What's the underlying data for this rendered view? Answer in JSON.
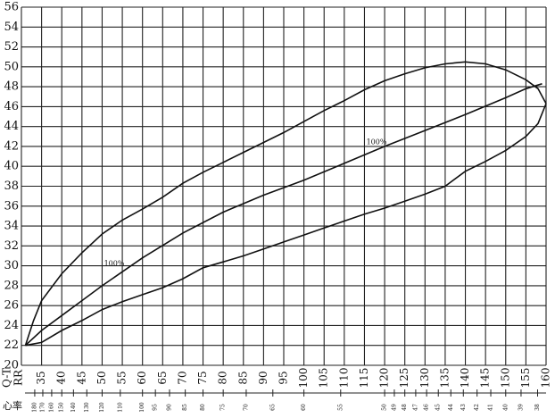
{
  "chart_data": {
    "type": "line",
    "x_label": "RR",
    "y_label": "Q-T",
    "hr_label": "心率",
    "xlim": [
      30,
      160
    ],
    "ylim": [
      20,
      56
    ],
    "xticks": [
      30,
      35,
      40,
      45,
      50,
      55,
      60,
      65,
      70,
      75,
      80,
      85,
      90,
      95,
      100,
      105,
      110,
      115,
      120,
      125,
      130,
      135,
      140,
      145,
      150,
      155,
      160
    ],
    "yticks": [
      20,
      22,
      24,
      26,
      28,
      30,
      32,
      34,
      36,
      38,
      40,
      42,
      44,
      46,
      48,
      50,
      52,
      54,
      56
    ],
    "hr_ticks": [
      {
        "value": 33.3,
        "label": "180"
      },
      {
        "value": 35.3,
        "label": "170"
      },
      {
        "value": 37.5,
        "label": "160"
      },
      {
        "value": 40,
        "label": "150"
      },
      {
        "value": 42.9,
        "label": "140"
      },
      {
        "value": 46.2,
        "label": "130"
      },
      {
        "value": 50,
        "label": "120"
      },
      {
        "value": 54.5,
        "label": "110"
      },
      {
        "value": 60,
        "label": "100"
      },
      {
        "value": 63.2,
        "label": "95"
      },
      {
        "value": 66.7,
        "label": "90"
      },
      {
        "value": 70.6,
        "label": "85"
      },
      {
        "value": 75,
        "label": "80"
      },
      {
        "value": 80,
        "label": "75"
      },
      {
        "value": 85.7,
        "label": "70"
      },
      {
        "value": 92.3,
        "label": "65"
      },
      {
        "value": 100,
        "label": "60"
      },
      {
        "value": 109.1,
        "label": "55"
      },
      {
        "value": 120,
        "label": "50"
      },
      {
        "value": 122.4,
        "label": "49"
      },
      {
        "value": 125,
        "label": "48"
      },
      {
        "value": 127.7,
        "label": "47"
      },
      {
        "value": 130.4,
        "label": "46"
      },
      {
        "value": 133.3,
        "label": "45"
      },
      {
        "value": 136.4,
        "label": "44"
      },
      {
        "value": 139.5,
        "label": "43"
      },
      {
        "value": 142.9,
        "label": "42"
      },
      {
        "value": 146.3,
        "label": "41"
      },
      {
        "value": 150,
        "label": "40"
      },
      {
        "value": 153.8,
        "label": "39"
      },
      {
        "value": 157.9,
        "label": "38"
      }
    ],
    "grid": true,
    "annotations": [
      "100%",
      "100%"
    ],
    "series": [
      {
        "color": "#111111",
        "x": [
          31,
          33,
          35,
          40,
          45,
          50,
          55,
          60,
          65,
          70,
          75,
          80,
          85,
          90,
          95,
          100,
          105,
          110,
          115,
          120,
          125,
          130,
          135,
          140,
          145,
          150,
          155,
          158,
          160
        ],
        "values": [
          22,
          24.5,
          26.5,
          29.2,
          31.3,
          33.2,
          34.6,
          35.7,
          36.9,
          38.3,
          39.4,
          40.4,
          41.4,
          42.4,
          43.4,
          44.5,
          45.6,
          46.6,
          47.7,
          48.6,
          49.3,
          49.9,
          50.3,
          50.5,
          50.3,
          49.7,
          48.7,
          47.8,
          46.3
        ]
      },
      {
        "color": "#111111",
        "x": [
          31,
          35,
          40,
          45,
          50,
          60,
          70,
          80,
          90,
          100,
          110,
          120,
          130,
          140,
          150,
          155,
          159
        ],
        "values": [
          22,
          23.5,
          25,
          26.5,
          28,
          30.8,
          33.3,
          35.4,
          37.1,
          38.6,
          40.3,
          42,
          43.6,
          45.2,
          46.9,
          47.8,
          48.3
        ]
      },
      {
        "color": "#111111",
        "x": [
          31,
          35,
          40,
          45,
          50,
          55,
          60,
          65,
          70,
          75,
          80,
          85,
          90,
          95,
          100,
          105,
          110,
          115,
          120,
          125,
          130,
          135,
          140,
          145,
          150,
          155,
          158,
          160
        ],
        "values": [
          22,
          22.3,
          23.5,
          24.5,
          25.6,
          26.4,
          27.1,
          27.8,
          28.7,
          29.8,
          30.4,
          31,
          31.7,
          32.4,
          33.1,
          33.8,
          34.5,
          35.2,
          35.8,
          36.5,
          37.2,
          38,
          39.5,
          40.5,
          41.6,
          43,
          44.3,
          46.3
        ]
      }
    ]
  }
}
